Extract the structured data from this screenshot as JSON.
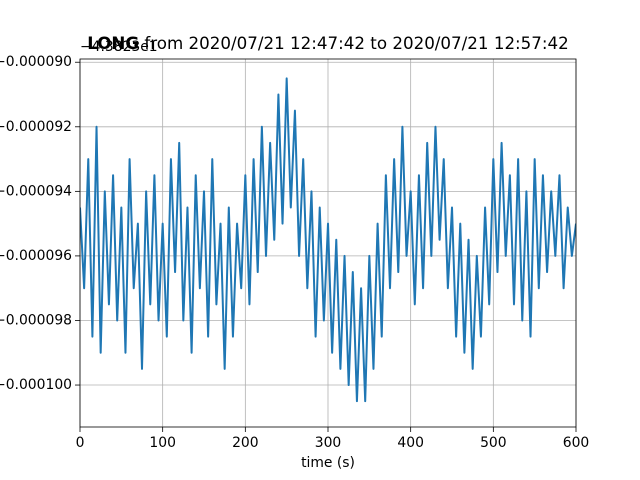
{
  "chart_data": {
    "type": "line",
    "title": [
      "LONG",
      "from 2020/07/21 12:47:42 to 2020/07/21 12:57:42"
    ],
    "y_offset_label": "−4.3823e1",
    "xlabel": "time (s)",
    "color": "#1f77b4",
    "grid": true,
    "xlim": [
      0,
      600
    ],
    "xticks": [
      0,
      100,
      200,
      300,
      400,
      500,
      600
    ],
    "ylim": [
      -0.0001013,
      -8.99e-05
    ],
    "yticks": [
      {
        "value": -9e-05,
        "label": "−0.000090"
      },
      {
        "value": -9.2e-05,
        "label": "−0.000092"
      },
      {
        "value": -9.4e-05,
        "label": "−0.000094"
      },
      {
        "value": -9.6e-05,
        "label": "−0.000096"
      },
      {
        "value": -9.8e-05,
        "label": "−0.000098"
      },
      {
        "value": -0.0001,
        "label": "−0.000100"
      }
    ],
    "x": [
      0,
      5,
      10,
      15,
      20,
      25,
      30,
      35,
      40,
      45,
      50,
      55,
      60,
      65,
      70,
      75,
      80,
      85,
      90,
      95,
      100,
      105,
      110,
      115,
      120,
      125,
      130,
      135,
      140,
      145,
      150,
      155,
      160,
      165,
      170,
      175,
      180,
      185,
      190,
      195,
      200,
      205,
      210,
      215,
      220,
      225,
      230,
      235,
      240,
      245,
      250,
      255,
      260,
      265,
      270,
      275,
      280,
      285,
      290,
      295,
      300,
      305,
      310,
      315,
      320,
      325,
      330,
      335,
      340,
      345,
      350,
      355,
      360,
      365,
      370,
      375,
      380,
      385,
      390,
      395,
      400,
      405,
      410,
      415,
      420,
      425,
      430,
      435,
      440,
      445,
      450,
      455,
      460,
      465,
      470,
      475,
      480,
      485,
      490,
      495,
      500,
      505,
      510,
      515,
      520,
      525,
      530,
      535,
      540,
      545,
      550,
      555,
      560,
      565,
      570,
      575,
      580,
      585,
      590,
      595,
      600
    ],
    "values": [
      -9.45e-05,
      -9.7e-05,
      -9.3e-05,
      -9.85e-05,
      -9.2e-05,
      -9.9e-05,
      -9.4e-05,
      -9.75e-05,
      -9.35e-05,
      -9.8e-05,
      -9.45e-05,
      -9.9e-05,
      -9.3e-05,
      -9.7e-05,
      -9.5e-05,
      -9.95e-05,
      -9.4e-05,
      -9.75e-05,
      -9.35e-05,
      -9.8e-05,
      -9.5e-05,
      -9.85e-05,
      -9.3e-05,
      -9.65e-05,
      -9.25e-05,
      -9.8e-05,
      -9.45e-05,
      -9.9e-05,
      -9.35e-05,
      -9.7e-05,
      -9.4e-05,
      -9.85e-05,
      -9.3e-05,
      -9.75e-05,
      -9.5e-05,
      -9.95e-05,
      -9.45e-05,
      -9.85e-05,
      -9.5e-05,
      -9.7e-05,
      -9.35e-05,
      -9.75e-05,
      -9.3e-05,
      -9.65e-05,
      -9.2e-05,
      -9.6e-05,
      -9.25e-05,
      -9.55e-05,
      -9.1e-05,
      -9.5e-05,
      -9.05e-05,
      -9.45e-05,
      -9.15e-05,
      -9.6e-05,
      -9.3e-05,
      -9.7e-05,
      -9.4e-05,
      -9.85e-05,
      -9.45e-05,
      -9.8e-05,
      -9.5e-05,
      -9.9e-05,
      -9.55e-05,
      -9.95e-05,
      -9.6e-05,
      -0.0001,
      -9.65e-05,
      -0.0001005,
      -9.7e-05,
      -0.0001005,
      -9.6e-05,
      -9.95e-05,
      -9.5e-05,
      -9.85e-05,
      -9.35e-05,
      -9.7e-05,
      -9.3e-05,
      -9.65e-05,
      -9.2e-05,
      -9.6e-05,
      -9.4e-05,
      -9.75e-05,
      -9.35e-05,
      -9.7e-05,
      -9.25e-05,
      -9.6e-05,
      -9.2e-05,
      -9.55e-05,
      -9.3e-05,
      -9.7e-05,
      -9.45e-05,
      -9.85e-05,
      -9.5e-05,
      -9.9e-05,
      -9.55e-05,
      -9.95e-05,
      -9.6e-05,
      -9.85e-05,
      -9.45e-05,
      -9.75e-05,
      -9.3e-05,
      -9.65e-05,
      -9.25e-05,
      -9.6e-05,
      -9.35e-05,
      -9.75e-05,
      -9.3e-05,
      -9.8e-05,
      -9.4e-05,
      -9.85e-05,
      -9.3e-05,
      -9.7e-05,
      -9.35e-05,
      -9.65e-05,
      -9.4e-05,
      -9.6e-05,
      -9.35e-05,
      -9.7e-05,
      -9.45e-05,
      -9.6e-05,
      -9.5e-05
    ]
  }
}
